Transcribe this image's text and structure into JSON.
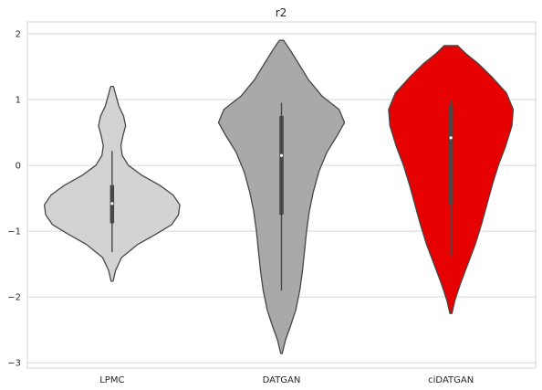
{
  "chart_data": {
    "type": "violin",
    "title": "r2",
    "xlabel": "",
    "ylabel": "",
    "categories": [
      "LPMC",
      "DATGAN",
      "ciDATGAN"
    ],
    "y_ticks": [
      2,
      1,
      0,
      -1,
      -2,
      -3
    ],
    "y_tick_labels": [
      "2",
      "1",
      "0",
      "−1",
      "−2",
      "−3"
    ],
    "ylim": [
      -3.08,
      2.18
    ],
    "grid": "horizontal",
    "legend": "none",
    "series": [
      {
        "category": "LPMC",
        "color": "#d3d3d3",
        "min": -1.32,
        "q1": -0.88,
        "median": -0.58,
        "q3": -0.3,
        "max": 0.22,
        "density": [
          [
            -1.76,
            0.015
          ],
          [
            -1.6,
            0.05
          ],
          [
            -1.4,
            0.14
          ],
          [
            -1.2,
            0.38
          ],
          [
            -1.05,
            0.64
          ],
          [
            -0.9,
            0.88
          ],
          [
            -0.75,
            0.98
          ],
          [
            -0.6,
            1.0
          ],
          [
            -0.45,
            0.9
          ],
          [
            -0.3,
            0.7
          ],
          [
            -0.15,
            0.44
          ],
          [
            0.0,
            0.24
          ],
          [
            0.15,
            0.15
          ],
          [
            0.3,
            0.13
          ],
          [
            0.45,
            0.16
          ],
          [
            0.6,
            0.2
          ],
          [
            0.75,
            0.17
          ],
          [
            0.9,
            0.1
          ],
          [
            1.05,
            0.06
          ],
          [
            1.2,
            0.02
          ]
        ]
      },
      {
        "category": "DATGAN",
        "color": "#a9a9a9",
        "min": -1.9,
        "q1": -0.75,
        "median": 0.15,
        "q3": 0.75,
        "max": 0.95,
        "density": [
          [
            -2.86,
            0.01
          ],
          [
            -2.65,
            0.06
          ],
          [
            -2.45,
            0.13
          ],
          [
            -2.2,
            0.21
          ],
          [
            -1.9,
            0.27
          ],
          [
            -1.6,
            0.31
          ],
          [
            -1.3,
            0.34
          ],
          [
            -1.0,
            0.37
          ],
          [
            -0.7,
            0.41
          ],
          [
            -0.4,
            0.47
          ],
          [
            -0.1,
            0.55
          ],
          [
            0.2,
            0.67
          ],
          [
            0.45,
            0.82
          ],
          [
            0.65,
            0.93
          ],
          [
            0.85,
            0.85
          ],
          [
            1.05,
            0.6
          ],
          [
            1.3,
            0.4
          ],
          [
            1.55,
            0.25
          ],
          [
            1.75,
            0.13
          ],
          [
            1.9,
            0.03
          ]
        ]
      },
      {
        "category": "ciDATGAN",
        "color": "#e60000",
        "min": -1.38,
        "q1": -0.6,
        "median": 0.42,
        "q3": 0.92,
        "max": 1.0,
        "density": [
          [
            -2.25,
            0.015
          ],
          [
            -2.05,
            0.06
          ],
          [
            -1.8,
            0.14
          ],
          [
            -1.5,
            0.25
          ],
          [
            -1.2,
            0.36
          ],
          [
            -0.9,
            0.45
          ],
          [
            -0.6,
            0.53
          ],
          [
            -0.3,
            0.61
          ],
          [
            0.0,
            0.7
          ],
          [
            0.3,
            0.81
          ],
          [
            0.6,
            0.9
          ],
          [
            0.85,
            0.92
          ],
          [
            1.1,
            0.82
          ],
          [
            1.35,
            0.6
          ],
          [
            1.55,
            0.4
          ],
          [
            1.7,
            0.22
          ],
          [
            1.82,
            0.1
          ]
        ]
      }
    ]
  }
}
